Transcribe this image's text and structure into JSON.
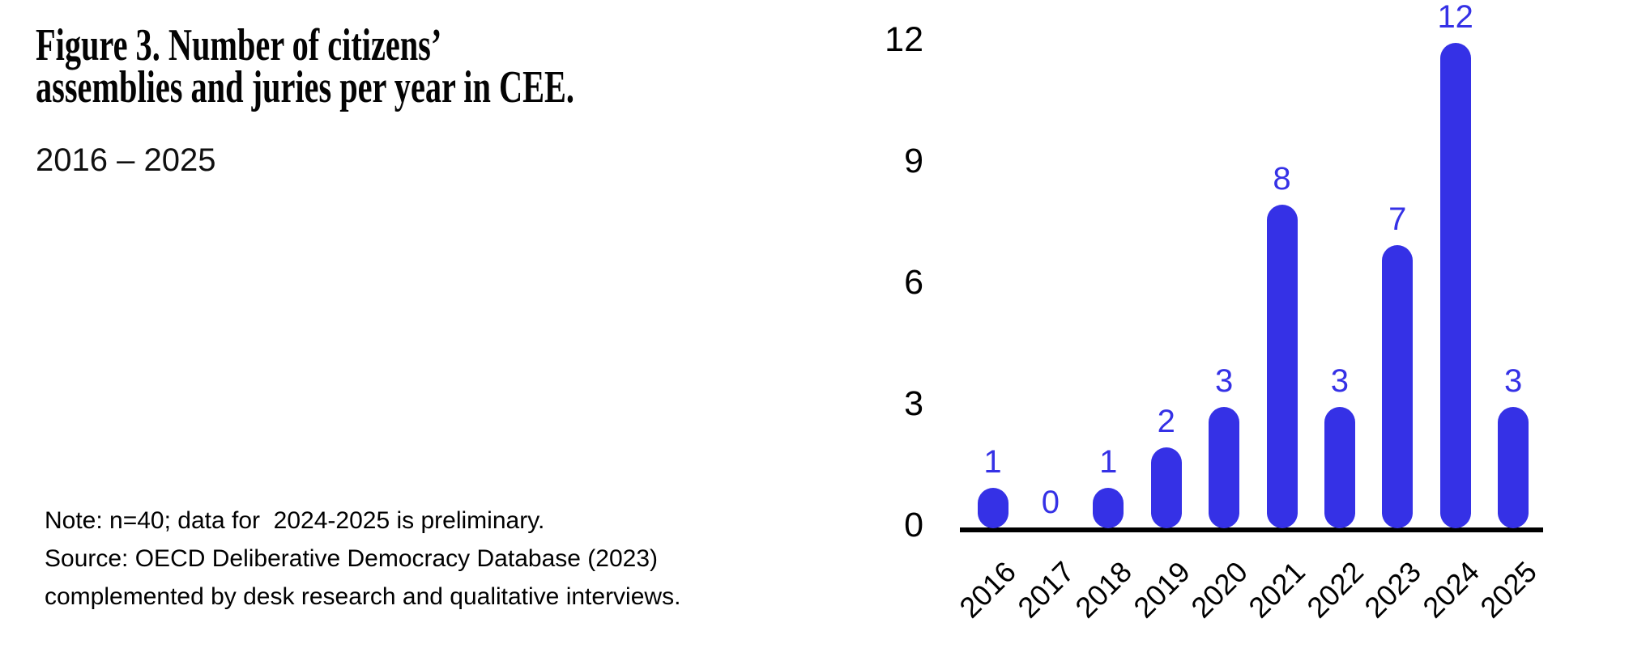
{
  "figure": {
    "title_lines": [
      "Figure 3. Number of citizens’",
      "assemblies and juries per year in CEE."
    ],
    "subtitle": "2016 – 2025",
    "note_lines": [
      "Note: n=40; data for  2024-2025 is preliminary.",
      "Source: OECD Deliberative Democracy Database (2023)",
      "complemented by desk research and qualitative interviews."
    ]
  },
  "chart_data": {
    "type": "bar",
    "title": "Figure 3. Number of citizens’ assemblies and juries per year in CEE.",
    "subtitle": "2016 – 2025",
    "categories": [
      "2016",
      "2017",
      "2018",
      "2019",
      "2020",
      "2021",
      "2022",
      "2023",
      "2024",
      "2025"
    ],
    "values": [
      1,
      0,
      1,
      2,
      3,
      8,
      3,
      7,
      12,
      3
    ],
    "y_ticks": [
      0,
      3,
      6,
      9,
      12
    ],
    "ylim": [
      0,
      12
    ],
    "xlabel": "",
    "ylabel": "",
    "grid": false,
    "legend": "none",
    "data_labels": true,
    "x_tick_rotation_deg": -45,
    "bar_color": "#3531E6",
    "value_label_color": "#3531E6",
    "axis_color": "#000000",
    "tick_label_color": "#000000"
  }
}
